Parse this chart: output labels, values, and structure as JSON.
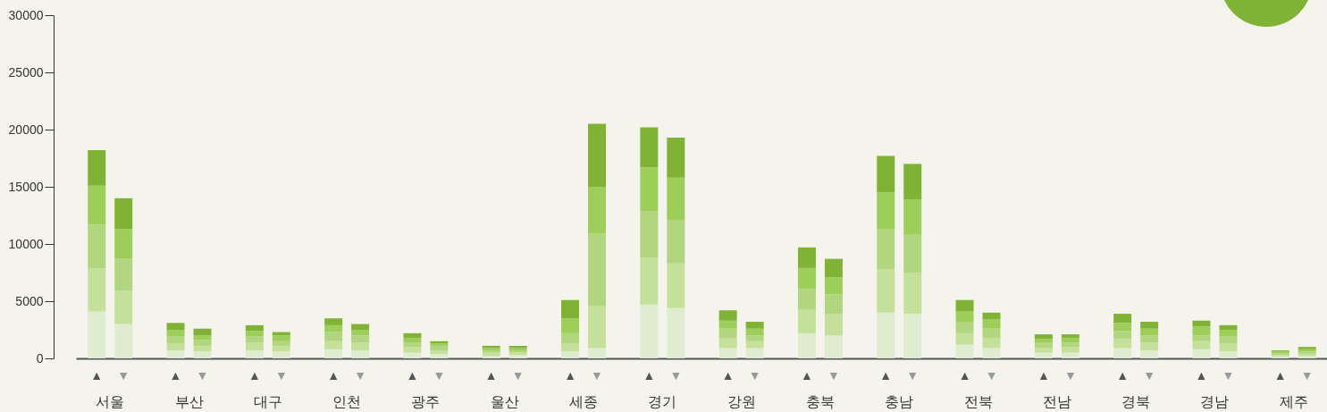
{
  "chart_data": {
    "type": "bar",
    "stacked": true,
    "categories": [
      "▲",
      "▼",
      "▲",
      "▼",
      "▲",
      "▼",
      "▲",
      "▼",
      "▲",
      "▼",
      "▲",
      "▼",
      "▲",
      "▼",
      "▲",
      "▼",
      "▲",
      "▼",
      "▲",
      "▼",
      "▲",
      "▼",
      "▲",
      "▼",
      "▲",
      "▼",
      "▲",
      "▼",
      "▲",
      "▼",
      "▲",
      "▼"
    ],
    "annotations": [
      "서울",
      "부산",
      "대구",
      "인천",
      "광주",
      "울산",
      "세종",
      "경기",
      "강원",
      "충북",
      "충남",
      "전북",
      "전남",
      "경북",
      "경남",
      "제주"
    ],
    "series": [
      {
        "color": "#e0ecd0",
        "values": [
          4100,
          3000,
          700,
          600,
          700,
          600,
          800,
          700,
          500,
          400,
          200,
          300,
          600,
          900,
          4700,
          4400,
          900,
          900,
          2200,
          2000,
          4000,
          3900,
          1200,
          900,
          500,
          500,
          900,
          700,
          800,
          600,
          150,
          200
        ]
      },
      {
        "color": "#c5e09b",
        "values": [
          3800,
          2900,
          600,
          500,
          700,
          500,
          700,
          700,
          500,
          300,
          300,
          200,
          700,
          3700,
          4100,
          3900,
          900,
          600,
          2100,
          1900,
          3800,
          3600,
          1000,
          900,
          400,
          500,
          800,
          700,
          700,
          700,
          150,
          200
        ]
      },
      {
        "color": "#b2d67f",
        "values": [
          3800,
          2800,
          600,
          500,
          500,
          400,
          800,
          600,
          400,
          400,
          200,
          200,
          900,
          6300,
          4100,
          3800,
          800,
          500,
          1800,
          1700,
          3500,
          3300,
          1000,
          800,
          500,
          400,
          700,
          600,
          500,
          600,
          150,
          200
        ]
      },
      {
        "color": "#9ece5a",
        "values": [
          3400,
          2600,
          600,
          400,
          500,
          500,
          600,
          500,
          400,
          200,
          200,
          200,
          1300,
          4100,
          3800,
          3700,
          700,
          600,
          1800,
          1500,
          3200,
          3100,
          900,
          800,
          300,
          400,
          700,
          600,
          800,
          600,
          150,
          200
        ]
      },
      {
        "color": "#80b236",
        "values": [
          3100,
          2700,
          600,
          600,
          500,
          300,
          600,
          500,
          400,
          200,
          200,
          200,
          1600,
          5500,
          3500,
          3500,
          900,
          600,
          1800,
          1600,
          3200,
          3100,
          1000,
          600,
          400,
          300,
          800,
          600,
          500,
          400,
          100,
          200
        ]
      }
    ],
    "ylim": [
      0,
      30000
    ],
    "yticks": [
      0,
      5000,
      10000,
      15000,
      20000,
      25000,
      30000
    ],
    "grid": false
  }
}
